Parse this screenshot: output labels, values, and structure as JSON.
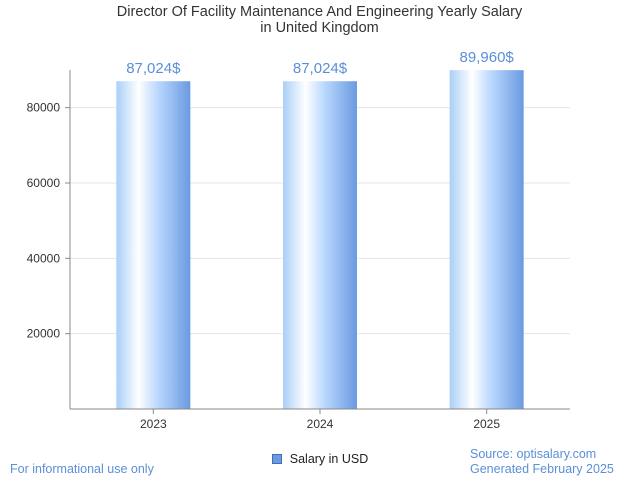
{
  "chart_data": {
    "type": "bar",
    "title_line1": "Director Of Facility Maintenance And Engineering Yearly Salary",
    "title_line2": "in United Kingdom",
    "categories": [
      "2023",
      "2024",
      "2025"
    ],
    "series": [
      {
        "name": "Salary in USD",
        "values": [
          87024,
          87024,
          89960
        ],
        "labels": [
          "87,024$",
          "87,024$",
          "89,960$"
        ]
      }
    ],
    "y_ticks": [
      20000,
      40000,
      60000,
      80000
    ],
    "ylim": [
      0,
      90000
    ],
    "grid": true,
    "legend_position": "bottom-center",
    "colors": {
      "bar_light": "#ffffff",
      "bar_mid": "#bcd9ff",
      "bar_dark": "#6a9ae0",
      "value_label": "#5b8fd9",
      "axis": "#888888",
      "grid": "#e6e6e6"
    }
  },
  "footer": {
    "left": "For informational use only",
    "source": "Source: optisalary.com",
    "generated": "Generated February 2025"
  }
}
